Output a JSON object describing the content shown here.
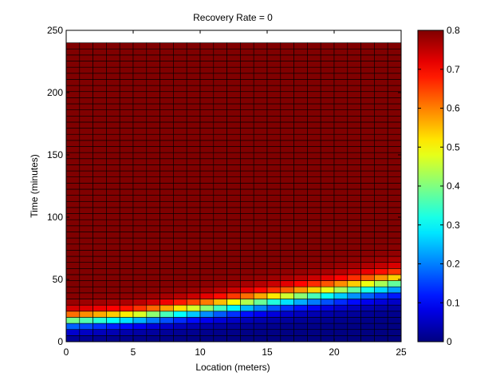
{
  "chart_data": {
    "type": "heatmap",
    "title": "Recovery Rate = 0",
    "xlabel": "Location (meters)",
    "ylabel": "Time (minutes)",
    "xlim": [
      0,
      25
    ],
    "ylim": [
      0,
      250
    ],
    "x_ticks": [
      0,
      5,
      10,
      15,
      20,
      25
    ],
    "y_ticks": [
      0,
      50,
      100,
      150,
      200,
      250
    ],
    "x_range": [
      0,
      25
    ],
    "y_range": [
      0,
      240
    ],
    "x_cells": 25,
    "y_cells": 49,
    "colormap": "jet",
    "color_range": [
      0,
      0.8
    ],
    "colorbar_ticks": [
      0,
      0.1,
      0.2,
      0.3,
      0.4,
      0.5,
      0.6,
      0.7,
      0.8
    ],
    "grid": true,
    "profile_x": [
      0,
      5,
      10,
      15,
      20,
      25
    ],
    "profile_front_time": [
      17,
      20,
      26,
      33,
      40,
      48
    ],
    "profile_width": [
      16,
      16,
      18,
      20,
      22,
      24
    ],
    "saturation_value": 0.8
  }
}
